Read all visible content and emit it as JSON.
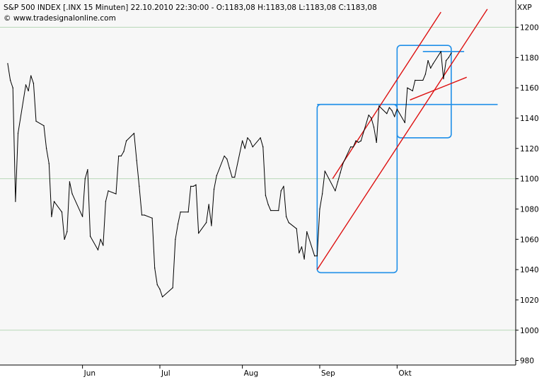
{
  "header": {
    "line1": "S&P 500 INDEX [.INX  15 Minuten] 22.10.2010 22:30:00 - O:1183,08 H:1183,08 L:1183,08 C:1183,08",
    "line2": "© www.tradesignalonline.com",
    "symbol": "XXP"
  },
  "chart_data": {
    "type": "line",
    "series": [
      {
        "values": [
          {
            "x": "2010-05-03",
            "y": 1176
          },
          {
            "x": "2010-05-04",
            "y": 1165
          },
          {
            "x": "2010-05-05",
            "y": 1160
          },
          {
            "x": "2010-05-06",
            "y": 1085
          },
          {
            "x": "2010-05-07",
            "y": 1130
          },
          {
            "x": "2010-05-10",
            "y": 1162
          },
          {
            "x": "2010-05-11",
            "y": 1158
          },
          {
            "x": "2010-05-12",
            "y": 1168
          },
          {
            "x": "2010-05-13",
            "y": 1163
          },
          {
            "x": "2010-05-14",
            "y": 1138
          },
          {
            "x": "2010-05-17",
            "y": 1135
          },
          {
            "x": "2010-05-18",
            "y": 1120
          },
          {
            "x": "2010-05-19",
            "y": 1110
          },
          {
            "x": "2010-05-20",
            "y": 1075
          },
          {
            "x": "2010-05-21",
            "y": 1085
          },
          {
            "x": "2010-05-24",
            "y": 1078
          },
          {
            "x": "2010-05-25",
            "y": 1060
          },
          {
            "x": "2010-05-26",
            "y": 1065
          },
          {
            "x": "2010-05-27",
            "y": 1098
          },
          {
            "x": "2010-05-28",
            "y": 1090
          },
          {
            "x": "2010-06-01",
            "y": 1075
          },
          {
            "x": "2010-06-02",
            "y": 1100
          },
          {
            "x": "2010-06-03",
            "y": 1106
          },
          {
            "x": "2010-06-04",
            "y": 1062
          },
          {
            "x": "2010-06-07",
            "y": 1053
          },
          {
            "x": "2010-06-08",
            "y": 1060
          },
          {
            "x": "2010-06-09",
            "y": 1056
          },
          {
            "x": "2010-06-10",
            "y": 1085
          },
          {
            "x": "2010-06-11",
            "y": 1092
          },
          {
            "x": "2010-06-14",
            "y": 1090
          },
          {
            "x": "2010-06-15",
            "y": 1115
          },
          {
            "x": "2010-06-16",
            "y": 1115
          },
          {
            "x": "2010-06-17",
            "y": 1118
          },
          {
            "x": "2010-06-18",
            "y": 1125
          },
          {
            "x": "2010-06-21",
            "y": 1130
          },
          {
            "x": "2010-06-22",
            "y": 1112
          },
          {
            "x": "2010-06-23",
            "y": 1095
          },
          {
            "x": "2010-06-24",
            "y": 1076
          },
          {
            "x": "2010-06-25",
            "y": 1076
          },
          {
            "x": "2010-06-28",
            "y": 1074
          },
          {
            "x": "2010-06-29",
            "y": 1041
          },
          {
            "x": "2010-06-30",
            "y": 1030
          },
          {
            "x": "2010-07-01",
            "y": 1027
          },
          {
            "x": "2010-07-02",
            "y": 1022
          },
          {
            "x": "2010-07-06",
            "y": 1028
          },
          {
            "x": "2010-07-07",
            "y": 1060
          },
          {
            "x": "2010-07-08",
            "y": 1070
          },
          {
            "x": "2010-07-09",
            "y": 1078
          },
          {
            "x": "2010-07-12",
            "y": 1078
          },
          {
            "x": "2010-07-13",
            "y": 1095
          },
          {
            "x": "2010-07-14",
            "y": 1095
          },
          {
            "x": "2010-07-15",
            "y": 1096
          },
          {
            "x": "2010-07-16",
            "y": 1064
          },
          {
            "x": "2010-07-19",
            "y": 1071
          },
          {
            "x": "2010-07-20",
            "y": 1083
          },
          {
            "x": "2010-07-21",
            "y": 1069
          },
          {
            "x": "2010-07-22",
            "y": 1093
          },
          {
            "x": "2010-07-23",
            "y": 1102
          },
          {
            "x": "2010-07-26",
            "y": 1115
          },
          {
            "x": "2010-07-27",
            "y": 1113
          },
          {
            "x": "2010-07-28",
            "y": 1107
          },
          {
            "x": "2010-07-29",
            "y": 1101
          },
          {
            "x": "2010-07-30",
            "y": 1101
          },
          {
            "x": "2010-08-02",
            "y": 1125
          },
          {
            "x": "2010-08-03",
            "y": 1120
          },
          {
            "x": "2010-08-04",
            "y": 1127
          },
          {
            "x": "2010-08-05",
            "y": 1125
          },
          {
            "x": "2010-08-06",
            "y": 1121
          },
          {
            "x": "2010-08-09",
            "y": 1127
          },
          {
            "x": "2010-08-10",
            "y": 1121
          },
          {
            "x": "2010-08-11",
            "y": 1089
          },
          {
            "x": "2010-08-12",
            "y": 1083
          },
          {
            "x": "2010-08-13",
            "y": 1079
          },
          {
            "x": "2010-08-16",
            "y": 1079
          },
          {
            "x": "2010-08-17",
            "y": 1092
          },
          {
            "x": "2010-08-18",
            "y": 1095
          },
          {
            "x": "2010-08-19",
            "y": 1075
          },
          {
            "x": "2010-08-20",
            "y": 1071
          },
          {
            "x": "2010-08-23",
            "y": 1067
          },
          {
            "x": "2010-08-24",
            "y": 1051
          },
          {
            "x": "2010-08-25",
            "y": 1055
          },
          {
            "x": "2010-08-26",
            "y": 1047
          },
          {
            "x": "2010-08-27",
            "y": 1065
          },
          {
            "x": "2010-08-30",
            "y": 1049
          },
          {
            "x": "2010-08-31",
            "y": 1049
          },
          {
            "x": "2010-09-01",
            "y": 1080
          },
          {
            "x": "2010-09-02",
            "y": 1090
          },
          {
            "x": "2010-09-03",
            "y": 1105
          },
          {
            "x": "2010-09-07",
            "y": 1092
          },
          {
            "x": "2010-09-08",
            "y": 1098
          },
          {
            "x": "2010-09-09",
            "y": 1104
          },
          {
            "x": "2010-09-10",
            "y": 1110
          },
          {
            "x": "2010-09-13",
            "y": 1121
          },
          {
            "x": "2010-09-14",
            "y": 1121
          },
          {
            "x": "2010-09-15",
            "y": 1125
          },
          {
            "x": "2010-09-16",
            "y": 1124
          },
          {
            "x": "2010-09-17",
            "y": 1125
          },
          {
            "x": "2010-09-20",
            "y": 1142
          },
          {
            "x": "2010-09-21",
            "y": 1140
          },
          {
            "x": "2010-09-22",
            "y": 1134
          },
          {
            "x": "2010-09-23",
            "y": 1124
          },
          {
            "x": "2010-09-24",
            "y": 1148
          },
          {
            "x": "2010-09-27",
            "y": 1143
          },
          {
            "x": "2010-09-28",
            "y": 1147
          },
          {
            "x": "2010-09-29",
            "y": 1145
          },
          {
            "x": "2010-09-30",
            "y": 1141
          },
          {
            "x": "2010-10-01",
            "y": 1146
          },
          {
            "x": "2010-10-04",
            "y": 1137
          },
          {
            "x": "2010-10-05",
            "y": 1160
          },
          {
            "x": "2010-10-06",
            "y": 1159
          },
          {
            "x": "2010-10-07",
            "y": 1158
          },
          {
            "x": "2010-10-08",
            "y": 1165
          },
          {
            "x": "2010-10-11",
            "y": 1165
          },
          {
            "x": "2010-10-12",
            "y": 1169
          },
          {
            "x": "2010-10-13",
            "y": 1178
          },
          {
            "x": "2010-10-14",
            "y": 1173
          },
          {
            "x": "2010-10-15",
            "y": 1176
          },
          {
            "x": "2010-10-18",
            "y": 1184
          },
          {
            "x": "2010-10-19",
            "y": 1166
          },
          {
            "x": "2010-10-20",
            "y": 1178
          },
          {
            "x": "2010-10-21",
            "y": 1180
          },
          {
            "x": "2010-10-22",
            "y": 1183
          }
        ]
      }
    ],
    "annotations": {
      "rectangles": [
        {
          "x0": "2010-08-31",
          "x1": "2010-10-01",
          "y0": 1038,
          "y1": 1149,
          "color": "#1f8fe8"
        },
        {
          "x0": "2010-10-01",
          "x1": "2010-10-22",
          "y0": 1127,
          "y1": 1188,
          "color": "#1f8fe8"
        }
      ],
      "horizontal_lines": [
        {
          "x0": "2010-08-31",
          "x1": "2010-11-09",
          "y": 1149,
          "color": "#1f8fe8"
        },
        {
          "x0": "2010-10-11",
          "x1": "2010-10-27",
          "y": 1184,
          "color": "#1f8fe8"
        }
      ],
      "trend_lines": [
        {
          "x0": "2010-08-31",
          "y0": 1040,
          "x1": "2010-11-05",
          "y1": 1212,
          "color": "#dd1111"
        },
        {
          "x0": "2010-09-06",
          "y0": 1100,
          "x1": "2010-10-18",
          "y1": 1210,
          "color": "#dd1111"
        },
        {
          "x0": "2010-10-06",
          "y0": 1152,
          "x1": "2010-10-28",
          "y1": 1167,
          "color": "#dd1111"
        }
      ]
    },
    "xaxis": {
      "ticks": [
        {
          "x": "2010-06-01",
          "label": "Jun"
        },
        {
          "x": "2010-07-01",
          "label": "Jul"
        },
        {
          "x": "2010-08-02",
          "label": "Aug"
        },
        {
          "x": "2010-09-01",
          "label": "Sep"
        },
        {
          "x": "2010-10-01",
          "label": "Okt"
        }
      ],
      "range": [
        "2010-04-30",
        "2010-11-16"
      ]
    },
    "yaxis": {
      "ticks": [
        980,
        1000,
        1020,
        1040,
        1060,
        1080,
        1100,
        1120,
        1140,
        1160,
        1180,
        1200
      ],
      "range": [
        977,
        1218
      ],
      "major_gridlines": [
        1000,
        1100,
        1200
      ]
    },
    "colors": {
      "price": "#000000",
      "channel": "#dd1111",
      "boxes": "#1f8fe8",
      "plot_bg": "#f7f7f7",
      "grid": "#b8d8b8"
    }
  }
}
